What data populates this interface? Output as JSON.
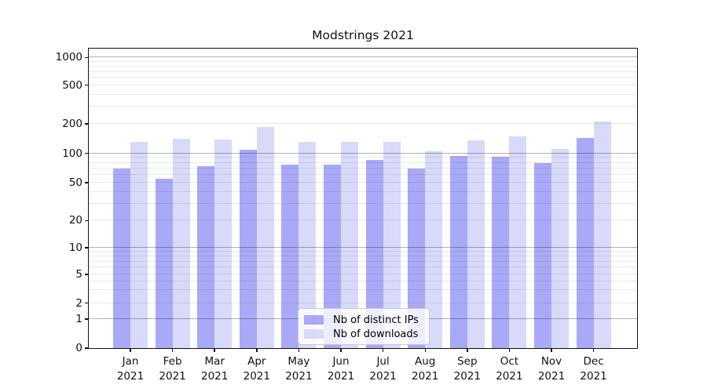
{
  "title": "Modstrings 2021",
  "chart_data": {
    "type": "bar",
    "title": "Modstrings 2021",
    "xlabel": "",
    "ylabel": "",
    "categories": [
      "Jan 2021",
      "Feb 2021",
      "Mar 2021",
      "Apr 2021",
      "May 2021",
      "Jun 2021",
      "Jul 2021",
      "Aug 2021",
      "Sep 2021",
      "Oct 2021",
      "Nov 2021",
      "Dec 2021"
    ],
    "series": [
      {
        "name": "Nb of distinct IPs",
        "color": "#a9a9f7",
        "values": [
          70,
          55,
          74,
          109,
          77,
          77,
          86,
          70,
          93,
          92,
          79,
          145
        ]
      },
      {
        "name": "Nb of downloads",
        "color": "#d9d9fa",
        "values": [
          130,
          142,
          139,
          187,
          132,
          130,
          131,
          105,
          137,
          150,
          110,
          212
        ]
      }
    ],
    "yscale": "log-like (1-2-5 tick pattern) with 0 baseline",
    "yticks": [
      0,
      1,
      2,
      5,
      10,
      20,
      50,
      100,
      200,
      500,
      1000
    ],
    "ytick_labels": [
      "0",
      "1",
      "2",
      "5",
      "10",
      "20",
      "50",
      "100",
      "200",
      "500",
      "1000"
    ],
    "ylim": [
      0,
      1000
    ],
    "grid": "horizontal major and minor gridlines",
    "grid_major_color": "rgba(0,0,0,0.30)",
    "grid_minor_color": "rgba(0,0,0,0.085)",
    "legend_position": "inside bottom-center",
    "background_color": "#ffffff",
    "axis_text_color": "#111111"
  }
}
